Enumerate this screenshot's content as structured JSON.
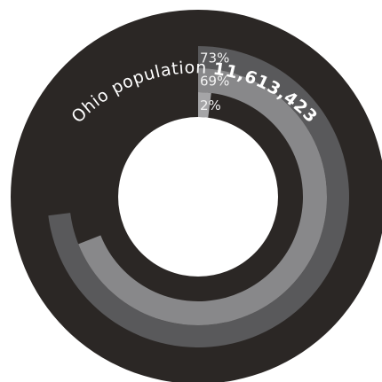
{
  "chart_data": {
    "type": "radial-bar",
    "title_prefix": "Ohio population",
    "title_value": "11,613,423",
    "max_value": 100,
    "rings": [
      {
        "label": "73%",
        "value": 73,
        "color": "#59595b"
      },
      {
        "label": "69%",
        "value": 69,
        "color": "#88888a"
      },
      {
        "label": "2%",
        "value": 2,
        "color": "#a5a5a7"
      }
    ]
  },
  "colors": {
    "outer_disc": "#2b2725",
    "background": "#ffffff",
    "title_text": "#ffffff",
    "ring_label_text": "#f2f2f2"
  }
}
